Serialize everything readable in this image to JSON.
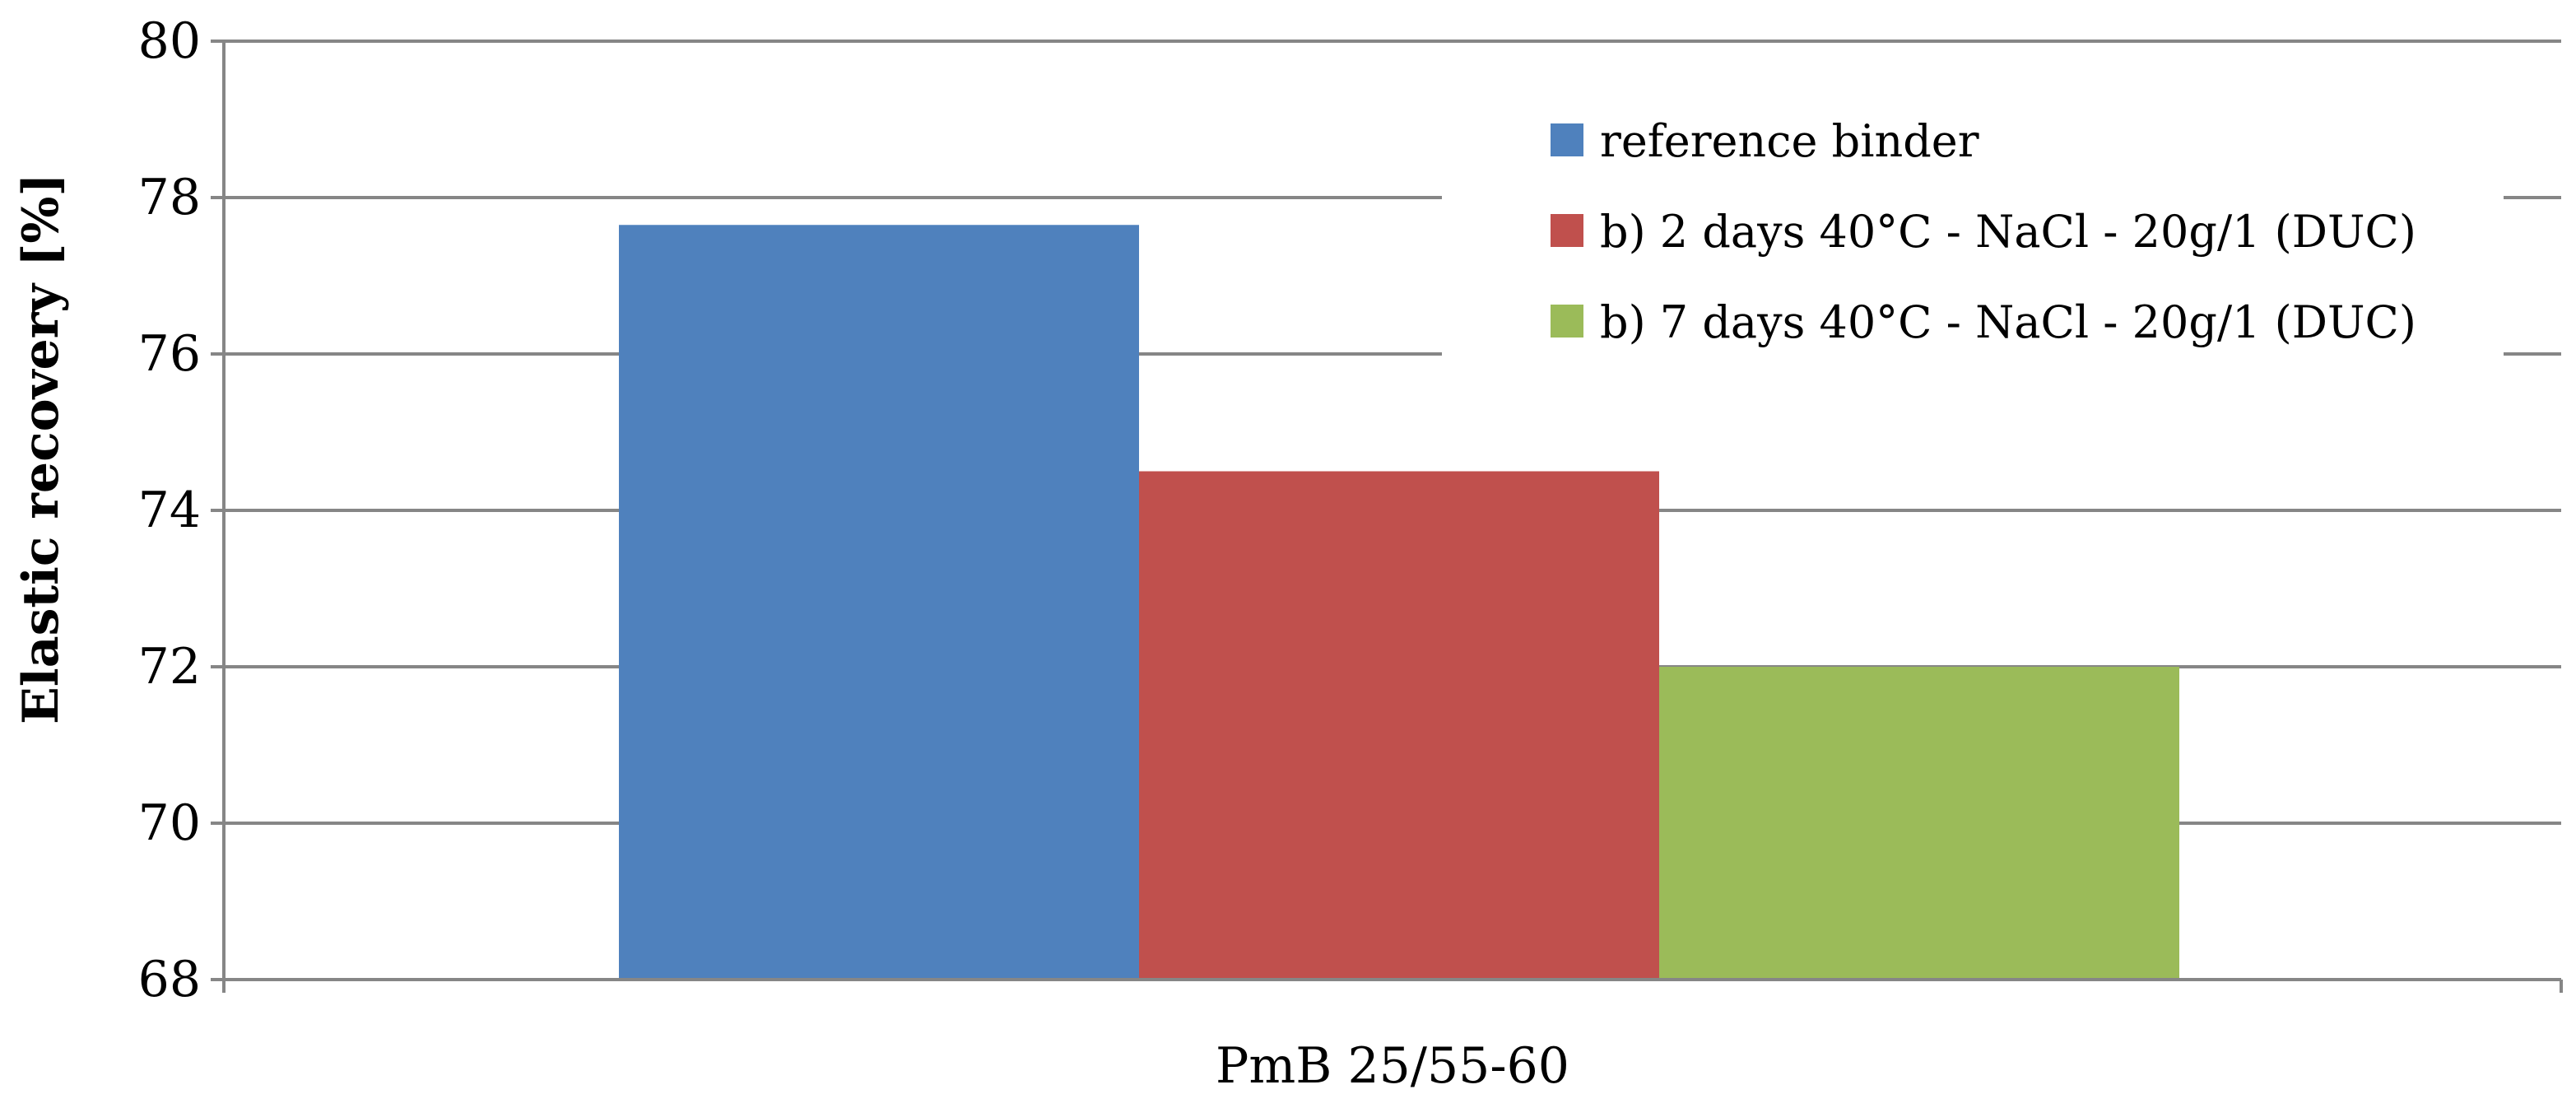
{
  "chart_data": {
    "type": "bar",
    "categories": [
      "PmB 25/55-60"
    ],
    "series": [
      {
        "name": "reference binder",
        "values": [
          77.65
        ],
        "color": "#4F81BD"
      },
      {
        "name": "b) 2 days 40°C - NaCl - 20g/1 (DUC)",
        "values": [
          74.5
        ],
        "color": "#C0504D"
      },
      {
        "name": "b) 7 days 40°C - NaCl - 20g/1 (DUC)",
        "values": [
          72.0
        ],
        "color": "#9BBB59"
      }
    ],
    "ylabel": "Elastic recovery [%]",
    "ylim": [
      68,
      80
    ],
    "yticks": [
      68,
      70,
      72,
      74,
      76,
      78,
      80
    ],
    "grid": true,
    "legend_position": "top-right",
    "gridline_color": "#868686",
    "axis_color": "#868686"
  }
}
